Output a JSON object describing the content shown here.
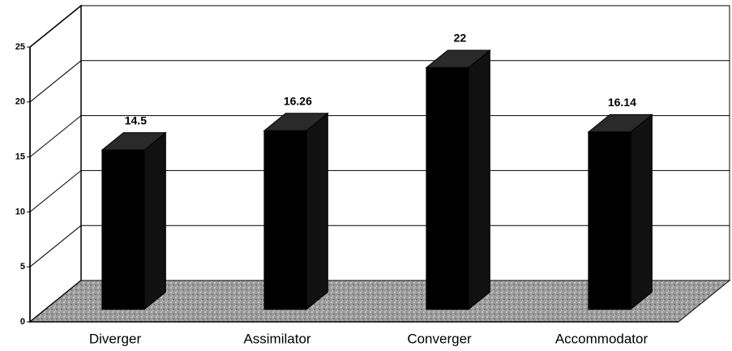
{
  "chart_data": {
    "type": "bar3d",
    "categories": [
      "Diverger",
      "Assimilator",
      "Converger",
      "Accommodator"
    ],
    "values": [
      14.5,
      16.26,
      22,
      16.14
    ],
    "color": "#000000",
    "ylim": [
      0,
      25
    ],
    "yticks": [
      0,
      5,
      10,
      15,
      20,
      25
    ],
    "grid": true
  }
}
